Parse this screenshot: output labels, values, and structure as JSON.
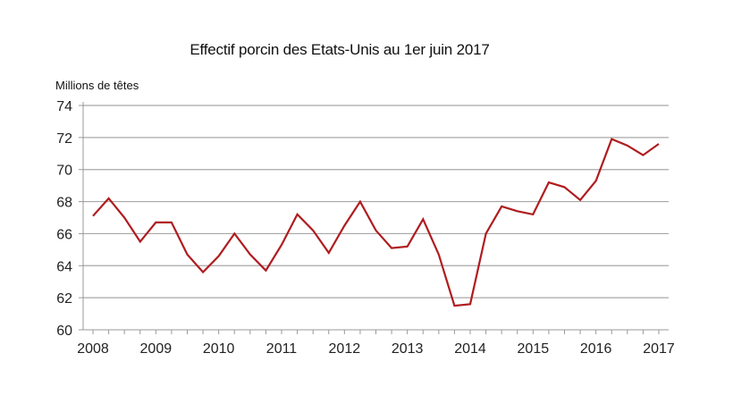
{
  "chart_data": {
    "type": "line",
    "title": "Effectif porcin des Etats-Unis au 1er juin 2017",
    "ylabel": "Millions de têtes",
    "xlabel": "",
    "ylim": [
      60,
      74
    ],
    "yticks": [
      60,
      62,
      64,
      66,
      68,
      70,
      72,
      74
    ],
    "xlim": [
      2008,
      2017
    ],
    "xticks": [
      "2008",
      "2009",
      "2010",
      "2011",
      "2012",
      "2013",
      "2014",
      "2015",
      "2016",
      "2017"
    ],
    "grid": true,
    "line_color": "#b01c1f",
    "series": [
      {
        "name": "Effectif porcin",
        "x": [
          2008.0,
          2008.25,
          2008.5,
          2008.75,
          2009.0,
          2009.25,
          2009.5,
          2009.75,
          2010.0,
          2010.25,
          2010.5,
          2010.75,
          2011.0,
          2011.25,
          2011.5,
          2011.75,
          2012.0,
          2012.25,
          2012.5,
          2012.75,
          2013.0,
          2013.25,
          2013.5,
          2013.75,
          2014.0,
          2014.25,
          2014.5,
          2014.75,
          2015.0,
          2015.25,
          2015.5,
          2015.75,
          2016.0,
          2016.25,
          2016.5,
          2016.75,
          2017.0
        ],
        "values": [
          67.1,
          68.2,
          67.0,
          65.5,
          66.7,
          66.7,
          64.7,
          63.6,
          64.6,
          66.0,
          64.7,
          63.7,
          65.3,
          67.2,
          66.2,
          64.8,
          66.5,
          68.0,
          66.2,
          65.1,
          65.2,
          66.9,
          64.7,
          61.5,
          61.6,
          66.0,
          67.7,
          67.4,
          67.2,
          69.2,
          68.9,
          68.1,
          69.3,
          71.9,
          71.5,
          70.9,
          71.6
        ]
      }
    ]
  }
}
